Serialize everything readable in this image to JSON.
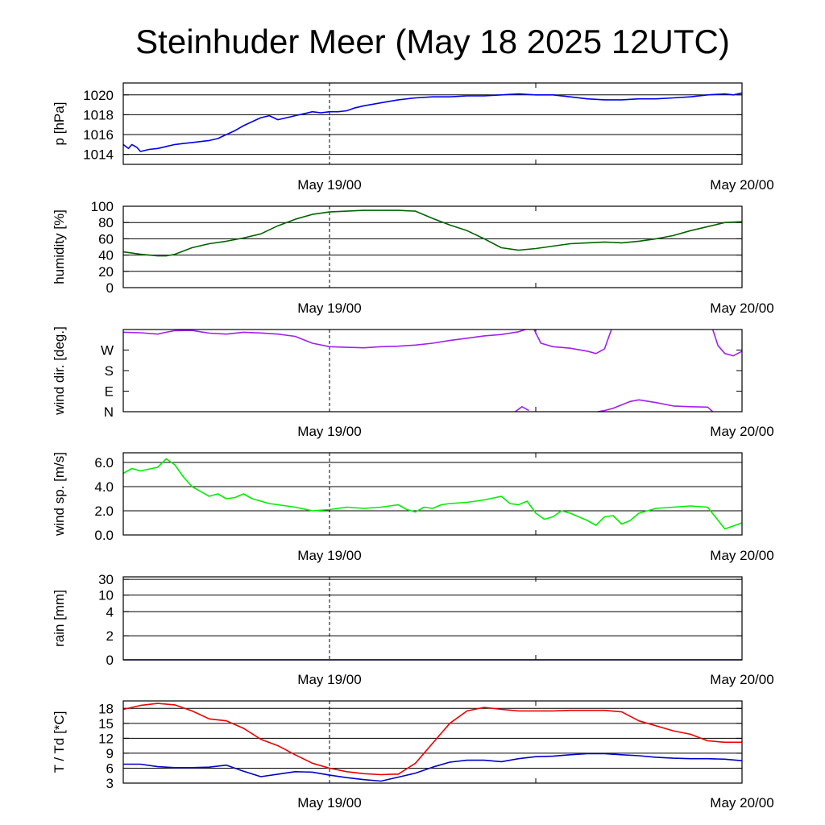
{
  "title": "Steinhuder Meer (May 18 2025 12UTC)",
  "colors": {
    "pressure": "#0000ee",
    "humidity": "#006400",
    "wind_dir": "#a020f0",
    "wind_speed": "#00ee00",
    "rain": "#00008b",
    "temperature": "#ee0000",
    "dewpoint": "#0000cc"
  },
  "chart_data": [
    {
      "type": "line",
      "id": "pressure",
      "ylabel": "p [hPa]",
      "x_range_hours": [
        0,
        36
      ],
      "x_ticks": [
        {
          "hour": 12,
          "label": "May 19/00"
        },
        {
          "hour": 36,
          "label": "May 20/00"
        }
      ],
      "ylim": [
        1013,
        1021.2
      ],
      "y_ticks": [
        1014,
        1016,
        1018,
        1020
      ],
      "y_tick_labels": [
        "1014",
        "1016",
        "1018",
        "1020"
      ],
      "grid": true,
      "series": [
        {
          "color_key": "pressure",
          "x": [
            0,
            0.3,
            0.5,
            0.8,
            1,
            1.5,
            2,
            2.5,
            3,
            3.5,
            4,
            4.5,
            5,
            5.5,
            6,
            6.5,
            7,
            7.5,
            8,
            8.5,
            9,
            9.5,
            10,
            10.5,
            11,
            11.5,
            12,
            12.5,
            13,
            13.5,
            14,
            15,
            16,
            17,
            18,
            19,
            20,
            21,
            22,
            23,
            24,
            25,
            26,
            27,
            28,
            29,
            30,
            31,
            32,
            33,
            34,
            35,
            35.5,
            36
          ],
          "y": [
            1015,
            1014.6,
            1015,
            1014.7,
            1014.3,
            1014.5,
            1014.6,
            1014.8,
            1015,
            1015.1,
            1015.2,
            1015.3,
            1015.4,
            1015.6,
            1016,
            1016.4,
            1016.9,
            1017.3,
            1017.7,
            1017.9,
            1017.5,
            1017.7,
            1017.9,
            1018.1,
            1018.3,
            1018.2,
            1018.3,
            1018.3,
            1018.4,
            1018.7,
            1018.9,
            1019.2,
            1019.5,
            1019.7,
            1019.8,
            1019.8,
            1019.9,
            1019.9,
            1020,
            1020.1,
            1020,
            1020,
            1019.8,
            1019.6,
            1019.5,
            1019.5,
            1019.6,
            1019.6,
            1019.7,
            1019.8,
            1020,
            1020.1,
            1020,
            1020.2
          ]
        }
      ]
    },
    {
      "type": "line",
      "id": "humidity",
      "ylabel": "humidity [%]",
      "x_range_hours": [
        0,
        36
      ],
      "x_ticks": [
        {
          "hour": 12,
          "label": "May 19/00"
        },
        {
          "hour": 36,
          "label": "May 20/00"
        }
      ],
      "ylim": [
        0,
        100
      ],
      "y_ticks": [
        0,
        20,
        40,
        60,
        80,
        100
      ],
      "y_tick_labels": [
        "0",
        "20",
        "40",
        "60",
        "80",
        "100"
      ],
      "grid": true,
      "series": [
        {
          "color_key": "humidity",
          "x": [
            0,
            1,
            2,
            2.5,
            3,
            4,
            5,
            6,
            7,
            8,
            9,
            10,
            11,
            12,
            13,
            14,
            15,
            16,
            17,
            18,
            19,
            20,
            21,
            22,
            23,
            24,
            25,
            26,
            27,
            28,
            29,
            30,
            31,
            32,
            33,
            34,
            35,
            36
          ],
          "y": [
            44,
            41,
            39,
            39,
            41,
            49,
            54,
            57,
            61,
            66,
            76,
            84,
            90,
            93,
            94,
            95,
            95,
            95,
            94,
            85,
            77,
            70,
            60,
            49,
            46,
            48,
            51,
            54,
            55,
            56,
            55,
            57,
            60,
            64,
            70,
            75,
            80,
            81
          ]
        }
      ]
    },
    {
      "type": "line",
      "id": "wind_direction",
      "ylabel": "wind dir. [deg.]",
      "x_range_hours": [
        0,
        36
      ],
      "x_ticks": [
        {
          "hour": 12,
          "label": "May 19/00"
        },
        {
          "hour": 36,
          "label": "May 20/00"
        }
      ],
      "ylim": [
        0,
        360
      ],
      "y_ticks": [
        0,
        90,
        180,
        270
      ],
      "y_tick_labels": [
        "N",
        "E",
        "S",
        "W"
      ],
      "grid": false,
      "series": [
        {
          "color_key": "wind_dir",
          "x": [
            0,
            1,
            2,
            2.5,
            3,
            4,
            5,
            6,
            7,
            8,
            9,
            10,
            11,
            12,
            13,
            14,
            15,
            16,
            17,
            18,
            19,
            20,
            21,
            22,
            23,
            23.4
          ],
          "y": [
            348,
            346,
            340,
            348,
            355,
            356,
            344,
            340,
            348,
            345,
            340,
            330,
            300,
            285,
            282,
            280,
            285,
            287,
            292,
            300,
            312,
            322,
            332,
            338,
            350,
            360
          ]
        },
        {
          "color_key": "wind_dir",
          "x": [
            23.9,
            24.3,
            25,
            26,
            27,
            27.5,
            28,
            28.4
          ],
          "y": [
            360,
            300,
            285,
            278,
            265,
            255,
            275,
            360
          ]
        },
        {
          "color_key": "wind_dir",
          "x": [
            34.3,
            34.6,
            35,
            35.5,
            36
          ],
          "y": [
            360,
            290,
            255,
            245,
            265
          ]
        },
        {
          "color_key": "wind_dir",
          "x": [
            22.8,
            23.2,
            23.6
          ],
          "y": [
            0,
            22,
            5
          ]
        },
        {
          "color_key": "wind_dir",
          "x": [
            27.6,
            28,
            28.5,
            29,
            29.5,
            30,
            31,
            32,
            33,
            34,
            34.3
          ],
          "y": [
            0,
            5,
            15,
            30,
            45,
            52,
            40,
            25,
            22,
            20,
            0
          ]
        }
      ]
    },
    {
      "type": "line",
      "id": "wind_speed",
      "ylabel": "wind sp. [m/s]",
      "x_range_hours": [
        0,
        36
      ],
      "x_ticks": [
        {
          "hour": 12,
          "label": "May 19/00"
        },
        {
          "hour": 36,
          "label": "May 20/00"
        }
      ],
      "ylim": [
        0,
        6.8
      ],
      "y_ticks": [
        0,
        2,
        4,
        6
      ],
      "y_tick_labels": [
        "0.0",
        "2.0",
        "4.0",
        "6.0"
      ],
      "grid": true,
      "series": [
        {
          "color_key": "wind_speed",
          "x": [
            0,
            0.5,
            1,
            2,
            2.5,
            3,
            3.5,
            4,
            5,
            5.5,
            6,
            6.5,
            7,
            7.5,
            8,
            8.5,
            9,
            10,
            11,
            12,
            13,
            14,
            15,
            16,
            16.5,
            17,
            17.5,
            18,
            18.5,
            19,
            20,
            21,
            22,
            22.5,
            23,
            23.5,
            24,
            24.5,
            25,
            25.5,
            26,
            27,
            27.5,
            28,
            28.5,
            29,
            29.5,
            30,
            31,
            32,
            33,
            34,
            34.5,
            35,
            36
          ],
          "y": [
            5.1,
            5.5,
            5.3,
            5.6,
            6.3,
            5.8,
            4.8,
            4,
            3.2,
            3.4,
            3,
            3.1,
            3.4,
            3,
            2.8,
            2.6,
            2.5,
            2.3,
            2,
            2.1,
            2.3,
            2.2,
            2.3,
            2.5,
            2.1,
            1.9,
            2.3,
            2.2,
            2.5,
            2.6,
            2.7,
            2.9,
            3.2,
            2.6,
            2.5,
            2.8,
            1.8,
            1.3,
            1.5,
            2,
            1.8,
            1.2,
            0.8,
            1.5,
            1.6,
            0.9,
            1.2,
            1.8,
            2.2,
            2.3,
            2.4,
            2.3,
            1.4,
            0.5,
            1
          ]
        }
      ]
    },
    {
      "type": "line",
      "id": "rain",
      "ylabel": "rain [mm]",
      "x_range_hours": [
        0,
        36
      ],
      "x_ticks": [
        {
          "hour": 12,
          "label": "May 19/00"
        },
        {
          "hour": 36,
          "label": "May 20/00"
        }
      ],
      "ylim": [
        0,
        30
      ],
      "y_scale": "quasi-log",
      "y_ticks": [
        0,
        2,
        4,
        10,
        30
      ],
      "y_tick_labels": [
        "0",
        "2",
        "4",
        "10",
        "30"
      ],
      "grid": true,
      "series": [
        {
          "color_key": "rain",
          "x": [
            0,
            36
          ],
          "y": [
            0,
            0
          ]
        }
      ]
    },
    {
      "type": "line",
      "id": "temperature_dewpoint",
      "ylabel": "T / Td [*C]",
      "x_range_hours": [
        0,
        36
      ],
      "x_ticks": [
        {
          "hour": 12,
          "label": "May 19/00"
        },
        {
          "hour": 36,
          "label": "May 20/00"
        }
      ],
      "ylim": [
        3,
        19.5
      ],
      "y_ticks": [
        3,
        6,
        9,
        12,
        15,
        18
      ],
      "y_tick_labels": [
        "3",
        "6",
        "9",
        "12",
        "15",
        "18"
      ],
      "grid": true,
      "series": [
        {
          "color_key": "temperature",
          "x": [
            0,
            1,
            2,
            3,
            4,
            5,
            6,
            7,
            8,
            9,
            10,
            11,
            12,
            13,
            14,
            15,
            15.7,
            16,
            17,
            18,
            19,
            20,
            21,
            22,
            23,
            24,
            25,
            26,
            27,
            28,
            29,
            30,
            31,
            32,
            33,
            34,
            35,
            36
          ],
          "y": [
            17.8,
            18.6,
            19,
            18.7,
            17.5,
            15.9,
            15.5,
            14,
            11.8,
            10.5,
            8.7,
            7,
            6,
            5.3,
            4.9,
            4.7,
            4.8,
            4.8,
            7,
            11,
            15,
            17.5,
            18.2,
            17.8,
            17.5,
            17.5,
            17.5,
            17.6,
            17.6,
            17.6,
            17.3,
            15.5,
            14.5,
            13.5,
            12.8,
            11.5,
            11.2,
            11.2
          ]
        },
        {
          "color_key": "dewpoint",
          "x": [
            0,
            1,
            2,
            3,
            4,
            5,
            6,
            7,
            8,
            9,
            10,
            11,
            12,
            13,
            14,
            15,
            16,
            17,
            18,
            19,
            20,
            21,
            22,
            23,
            24,
            25,
            26,
            27,
            28,
            29,
            30,
            31,
            32,
            33,
            34,
            35,
            36
          ],
          "y": [
            6.8,
            6.8,
            6.3,
            6.1,
            6.1,
            6.2,
            6.6,
            5.4,
            4.3,
            4.8,
            5.3,
            5.2,
            4.6,
            4.1,
            3.7,
            3.4,
            4.2,
            5,
            6.2,
            7.2,
            7.6,
            7.6,
            7.3,
            7.9,
            8.3,
            8.4,
            8.7,
            8.9,
            8.9,
            8.7,
            8.5,
            8.2,
            8,
            7.9,
            7.9,
            7.8,
            7.5
          ]
        }
      ]
    }
  ]
}
